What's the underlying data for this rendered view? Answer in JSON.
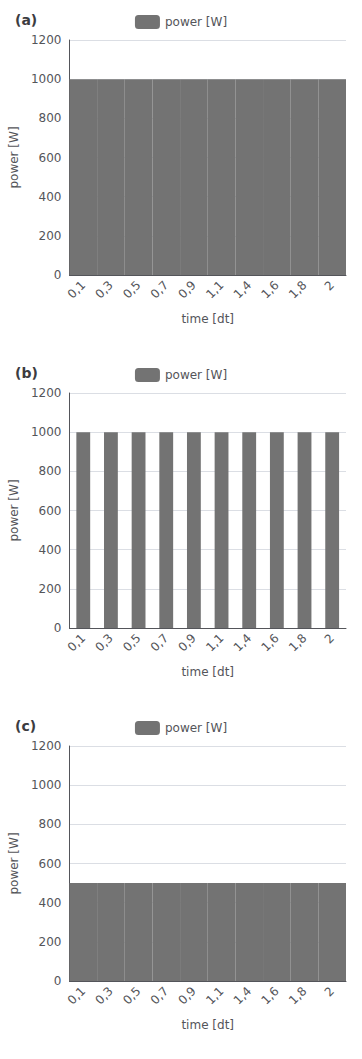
{
  "chart_data": [
    {
      "type": "bar",
      "title": "(a)",
      "categories": [
        "0,1",
        "0,3",
        "0,5",
        "0,7",
        "0,9",
        "1,1",
        "1,4",
        "1,6",
        "1,8",
        "2"
      ],
      "series": [
        {
          "name": "power [W]",
          "color": "#737373",
          "values": [
            1000,
            1000,
            1000,
            1000,
            1000,
            1000,
            1000,
            1000,
            1000,
            1000
          ]
        }
      ],
      "xlabel": "time [dt]",
      "ylabel": "power [W]",
      "ylim": [
        0,
        1200
      ],
      "yticks": [
        0,
        200,
        400,
        600,
        800,
        1000,
        1200
      ],
      "grid": true,
      "legend": "top"
    },
    {
      "type": "bar",
      "title": "(b)",
      "categories": [
        "0,1",
        "0,3",
        "0,5",
        "0,7",
        "0,9",
        "1,1",
        "1,4",
        "1,6",
        "1,8",
        "2"
      ],
      "series": [
        {
          "name": "power [W]",
          "color": "#737373",
          "values": [
            1000,
            1000,
            1000,
            1000,
            1000,
            1000,
            1000,
            1000,
            1000,
            1000
          ]
        }
      ],
      "xlabel": "time [dt]",
      "ylabel": "power [W]",
      "ylim": [
        0,
        1200
      ],
      "yticks": [
        0,
        200,
        400,
        600,
        800,
        1000,
        1200
      ],
      "grid": true,
      "legend": "top"
    },
    {
      "type": "bar",
      "title": "(c)",
      "categories": [
        "0,1",
        "0,3",
        "0,5",
        "0,7",
        "0,9",
        "1,1",
        "1,4",
        "1,6",
        "1,8",
        "2"
      ],
      "series": [
        {
          "name": "power [W]",
          "color": "#737373",
          "values": [
            500,
            500,
            500,
            500,
            500,
            500,
            500,
            500,
            500,
            500
          ]
        }
      ],
      "xlabel": "time [dt]",
      "ylabel": "power [W]",
      "ylim": [
        0,
        1200
      ],
      "yticks": [
        0,
        200,
        400,
        600,
        800,
        1000,
        1200
      ],
      "grid": true,
      "legend": "top"
    }
  ]
}
